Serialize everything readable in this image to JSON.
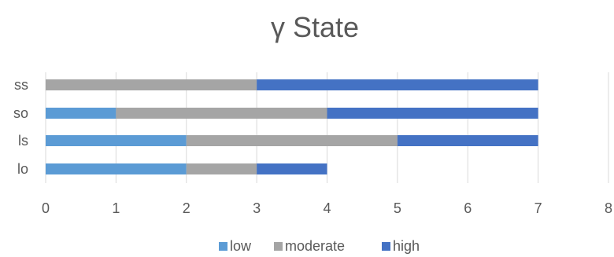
{
  "chart_data": {
    "type": "bar",
    "orientation": "horizontal",
    "stacked": true,
    "title": "γ State",
    "categories": [
      "lo",
      "ls",
      "so",
      "ss"
    ],
    "series": [
      {
        "name": "low",
        "values": [
          2,
          2,
          1,
          0
        ],
        "color": "#5b9bd5"
      },
      {
        "name": "moderate",
        "values": [
          1,
          3,
          3,
          3
        ],
        "color": "#a5a5a5"
      },
      {
        "name": "high",
        "values": [
          1,
          2,
          3,
          4
        ],
        "color": "#4472c4"
      }
    ],
    "xlim": [
      0,
      8
    ],
    "xticks": [
      "0",
      "1",
      "2",
      "3",
      "4",
      "5",
      "6",
      "7",
      "8"
    ],
    "grid": true,
    "legend": "bottom"
  }
}
